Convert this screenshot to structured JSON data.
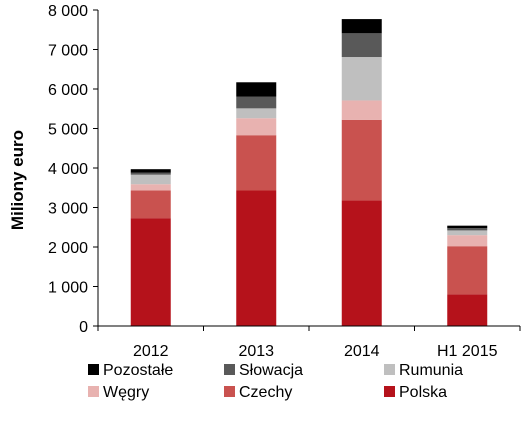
{
  "chart_data": {
    "type": "bar",
    "stacked": true,
    "categories": [
      "2012",
      "2013",
      "2014",
      "H1 2015"
    ],
    "ylabel": "Miliony euro",
    "ylim": [
      0,
      8000
    ],
    "yticks": [
      0,
      1000,
      2000,
      3000,
      4000,
      5000,
      6000,
      7000,
      8000
    ],
    "ytick_labels": [
      "0",
      "1 000",
      "2 000",
      "3 000",
      "4 000",
      "5 000",
      "6 000",
      "7 000",
      "8 000"
    ],
    "grid": false,
    "legend_position": "bottom",
    "series": [
      {
        "name": "Polska",
        "color": "#b5121b",
        "values": [
          2730,
          3430,
          3180,
          800
        ]
      },
      {
        "name": "Czechy",
        "color": "#c9524f",
        "values": [
          700,
          1400,
          2040,
          1220
        ]
      },
      {
        "name": "Węgry",
        "color": "#e8b2b0",
        "values": [
          160,
          430,
          490,
          280
        ]
      },
      {
        "name": "Rumunia",
        "color": "#bfbfbf",
        "values": [
          240,
          250,
          1100,
          120
        ]
      },
      {
        "name": "Słowacja",
        "color": "#595959",
        "values": [
          50,
          300,
          600,
          60
        ]
      },
      {
        "name": "Pozostałe",
        "color": "#000000",
        "values": [
          90,
          360,
          360,
          60
        ]
      }
    ],
    "legend_order": [
      "Pozostałe",
      "Słowacja",
      "Rumunia",
      "Węgry",
      "Czechy",
      "Polska"
    ]
  }
}
